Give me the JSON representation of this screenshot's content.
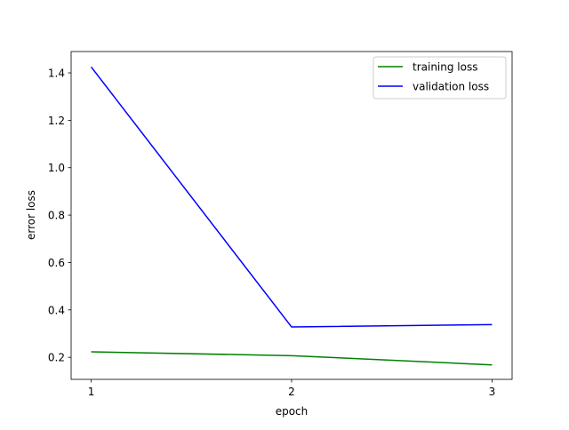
{
  "chart_data": {
    "type": "line",
    "title": "",
    "xlabel": "epoch",
    "ylabel": "error loss",
    "x": [
      1,
      2,
      3
    ],
    "xticks": [
      1,
      2,
      3
    ],
    "yticks": [
      0.2,
      0.4,
      0.6,
      0.8,
      1.0,
      1.2,
      1.4
    ],
    "xlim": [
      0.9,
      3.1
    ],
    "ylim": [
      0.107,
      1.49
    ],
    "grid": false,
    "legend_position": "upper right",
    "series": [
      {
        "name": "training loss",
        "color": "#008000",
        "values": [
          0.223,
          0.207,
          0.168
        ]
      },
      {
        "name": "validation loss",
        "color": "#0000ff",
        "values": [
          1.425,
          0.328,
          0.338
        ]
      }
    ]
  }
}
